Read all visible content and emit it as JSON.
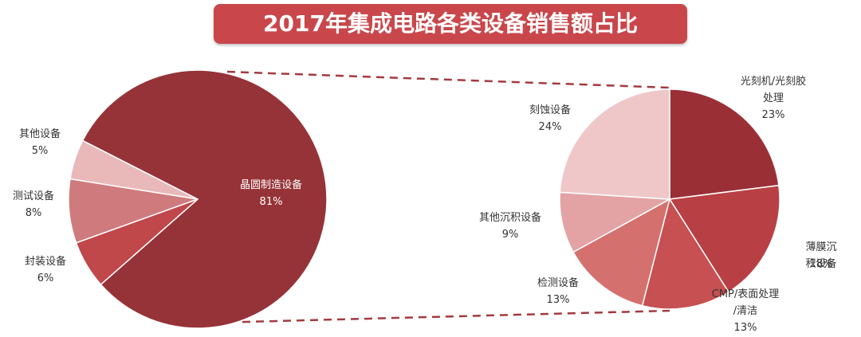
{
  "title": "2017年集成电路各类设备销售额占比",
  "chart_data": [
    {
      "type": "pie",
      "categories": [
        "晶圆制造设备",
        "其他设备",
        "测试设备",
        "封装设备"
      ],
      "values": [
        81,
        5,
        8,
        6
      ],
      "value_labels": [
        "81%",
        "5%",
        "8%",
        "6%"
      ],
      "colors": [
        "#963338",
        "#e9b9b9",
        "#cf7b7e",
        "#c0474a"
      ]
    },
    {
      "type": "pie",
      "categories": [
        "光刻机/光刻胶\n处理",
        "薄膜沉积设备",
        "CMP/表面处理\n/清洁",
        "检测设备",
        "其他沉积设备",
        "刻蚀设备"
      ],
      "values": [
        23,
        18,
        13,
        13,
        9,
        24
      ],
      "value_labels": [
        "23%",
        "18%",
        "13%",
        "13%",
        "9%",
        "24%"
      ],
      "colors": [
        "#9a3036",
        "#b84044",
        "#c65052",
        "#d4716f",
        "#e3a3a4",
        "#efc7c9"
      ]
    }
  ]
}
